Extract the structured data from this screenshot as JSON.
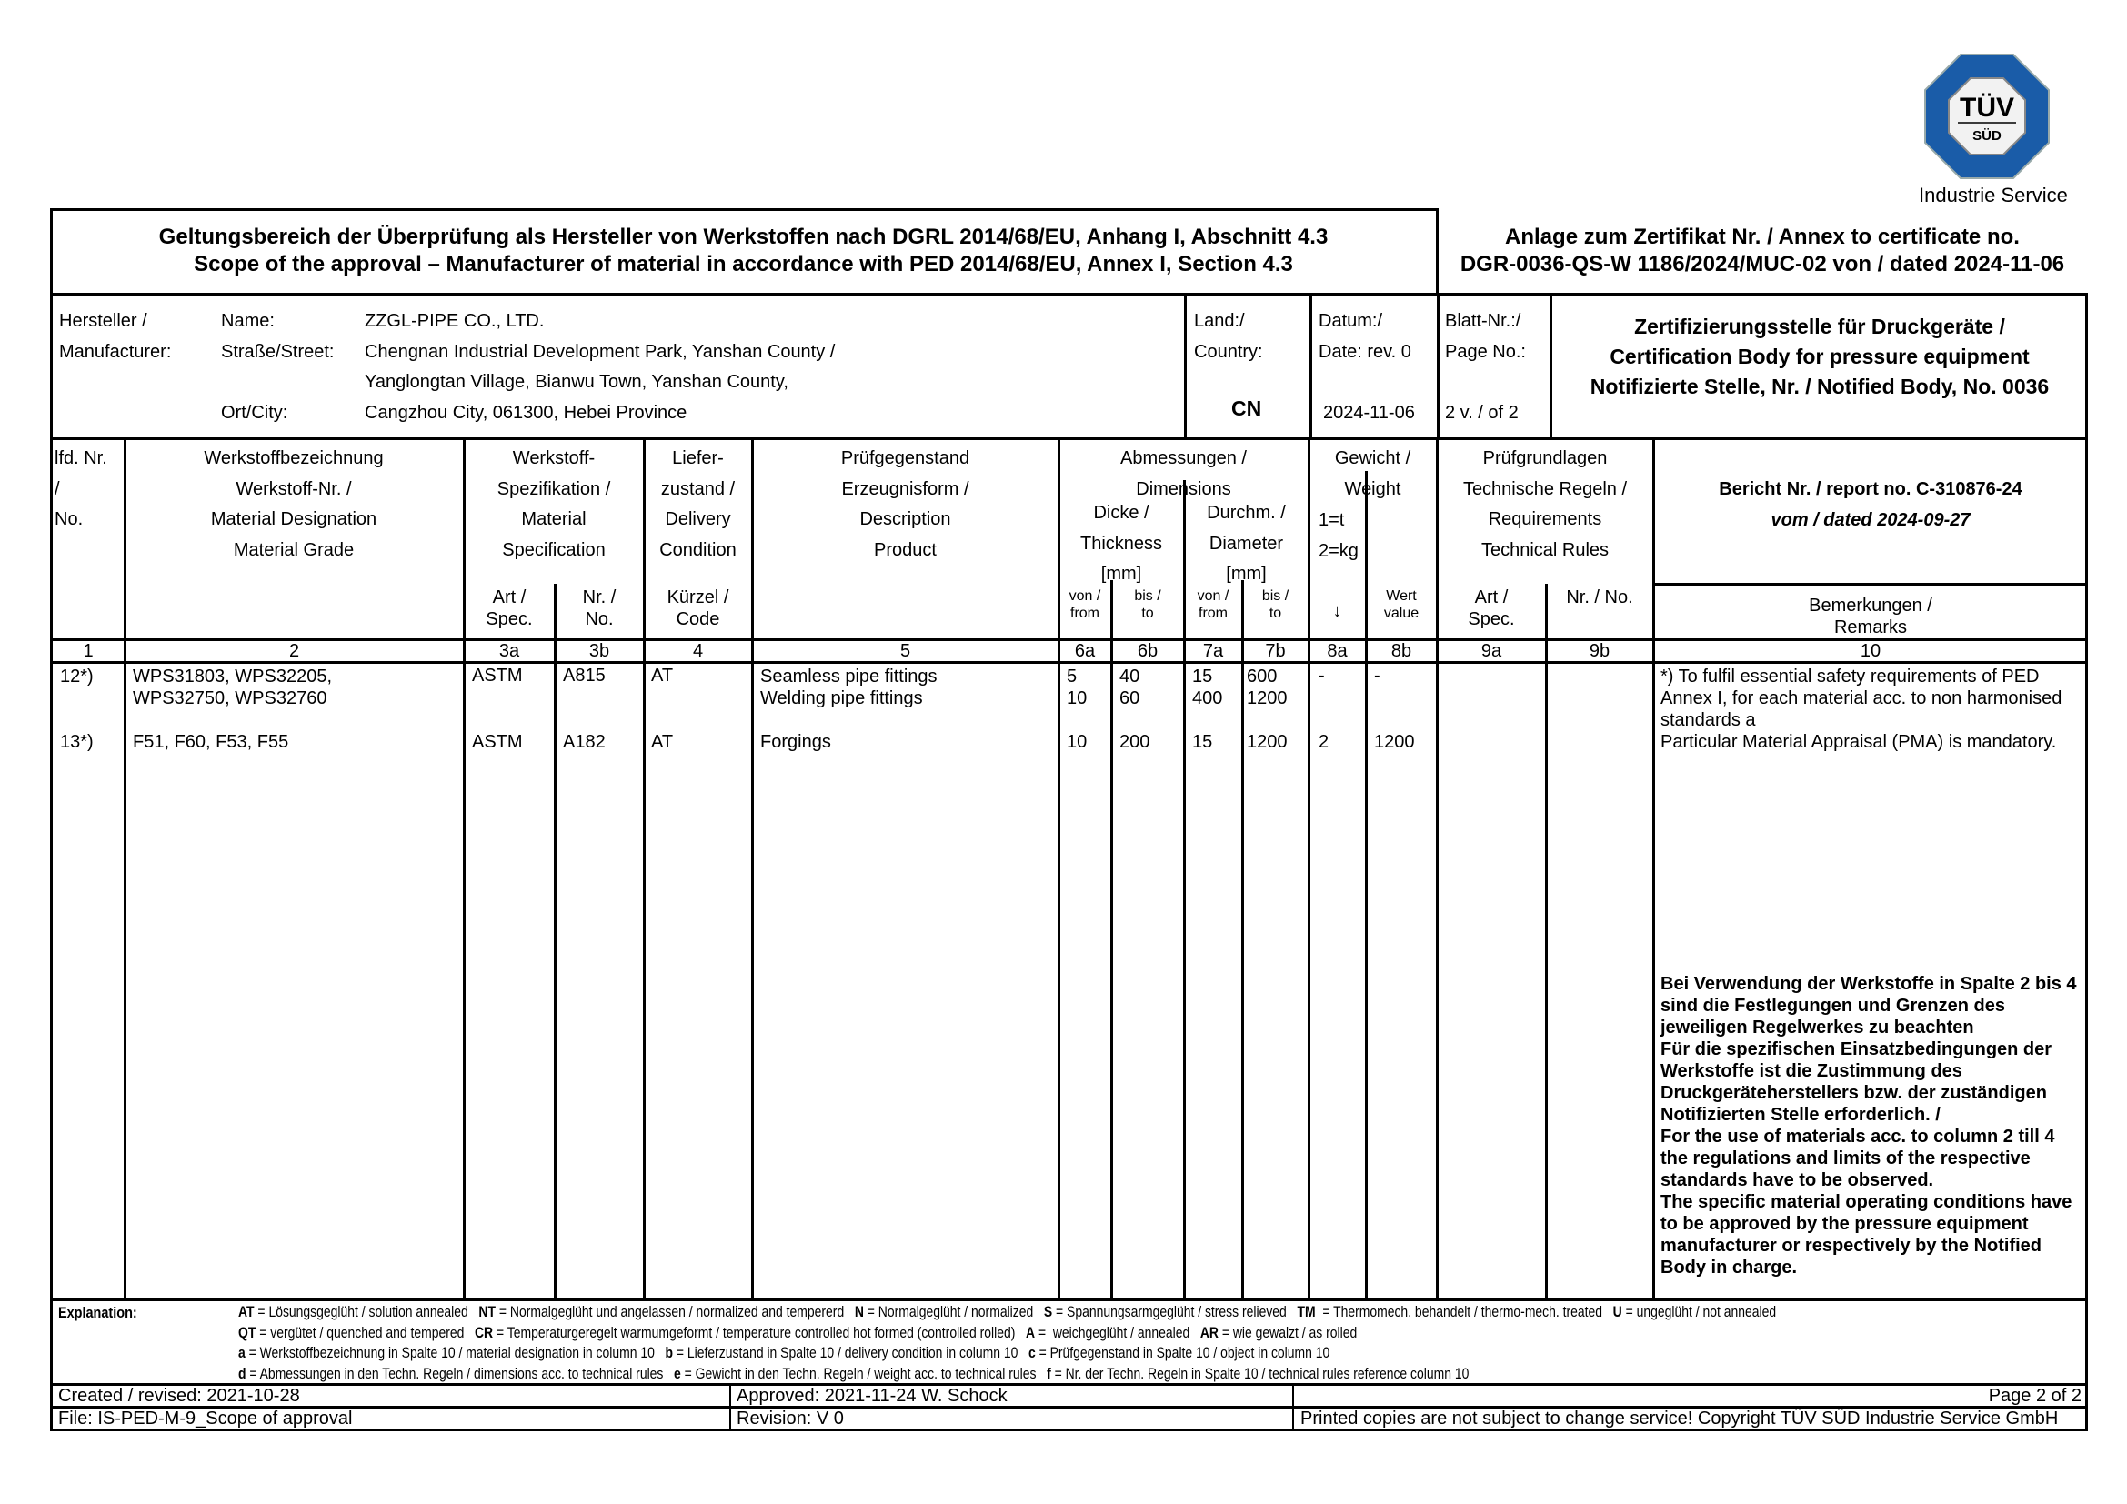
{
  "logo": {
    "brand": "TÜV",
    "sub": "SÜD",
    "caption": "Industrie Service",
    "blue": "#1a5ca8"
  },
  "title": {
    "de": "Geltungsbereich der Überprüfung als Hersteller von Werkstoffen nach DGRL 2014/68/EU, Anhang I, Abschnitt 4.3",
    "en": "Scope of the approval – Manufacturer of material in accordance with PED 2014/68/EU, Annex I, Section 4.3",
    "annex_line1": "Anlage zum Zertifikat Nr. / Annex to certificate no.",
    "annex_line2": "DGR-0036-QS-W 1186/2024/MUC-02 von / dated 2024-11-06"
  },
  "info": {
    "manufacturer_l1": "Hersteller /",
    "manufacturer_l2": "Manufacturer:",
    "name_label": "Name:",
    "street_label": "Straße/Street:",
    "city_label": "Ort/City:",
    "name": "ZZGL-PIPE CO., LTD.",
    "street1": "Chengnan Industrial Development Park, Yanshan County /",
    "street2": "Yanglongtan Village, Bianwu Town, Yanshan County,",
    "city": "Cangzhou City, 061300, Hebei Province",
    "country_l1": "Land:/",
    "country_l2": "Country:",
    "country": "CN",
    "date_l1": "Datum:/",
    "date_l2": "Date: rev. 0",
    "date": "2024-11-06",
    "page_l1": "Blatt-Nr.:/",
    "page_l2": "Page No.:",
    "page": "2 v. / of 2",
    "cert_l1": "Zertifizierungsstelle für Druckgeräte /",
    "cert_l2": "Certification Body for pressure equipment",
    "cert_l3": "Notifizierte Stelle, Nr. / Notified Body, No. 0036"
  },
  "headers": {
    "c1": "lfd. Nr.\n/\nNo.",
    "c2": "Werkstoffbezeichnung\nWerkstoff-Nr. /\nMaterial Designation\nMaterial Grade",
    "c3": "Werkstoff-\nSpezifikation /\nMaterial\nSpecification",
    "c3a": "Art /\nSpec.",
    "c3b": "Nr. /\nNo.",
    "c4": "Liefer-\nzustand /\nDelivery\nCondition",
    "c4code": "Kürzel /\nCode",
    "c5": "Prüfgegenstand\nErzeugnisform /\nDescription\nProduct",
    "c6_7": "Abmessungen /\nDimensions",
    "c6": "Dicke /\nThickness\n[mm]",
    "c7": "Durchm. /\nDiameter\n[mm]",
    "from": "von /\nfrom",
    "to": "bis /\nto",
    "c8": "Gewicht /\nWeight",
    "c8a_units": "1=t\n2=kg",
    "c8a_arrow": "↓",
    "c8b": "Wert\nvalue",
    "c9": "Prüfgrundlagen\nTechnische Regeln /\nRequirements\nTechnical Rules",
    "c9a": "Art /\nSpec.",
    "c9b": "Nr. / No.",
    "report": "Bericht Nr. / report no. C-310876-24",
    "report_date": "vom / dated 2024-09-27",
    "c10": "Bemerkungen /\nRemarks"
  },
  "col_numbers": [
    "1",
    "2",
    "3a",
    "3b",
    "4",
    "5",
    "6a",
    "6b",
    "7a",
    "7b",
    "8a",
    "8b",
    "9a",
    "9b",
    "10"
  ],
  "rows": [
    {
      "no": "12*)",
      "material": "WPS31803, WPS32205,\nWPS32750, WPS32760",
      "spec": "ASTM",
      "spec_no": "A815",
      "delivery": "AT",
      "product": "Seamless pipe fittings\nWelding pipe fittings",
      "t_from": "5\n10",
      "t_to": "40\n60",
      "d_from": "15\n400",
      "d_to": "600\n1200",
      "w_unit": "-",
      "w_value": "-"
    },
    {
      "no": "13*)",
      "material": "F51, F60, F53, F55",
      "spec": "ASTM",
      "spec_no": "A182",
      "delivery": "AT",
      "product": "Forgings",
      "t_from": "10",
      "t_to": "200",
      "d_from": "15",
      "d_to": "1200",
      "w_unit": "2",
      "w_value": "1200"
    }
  ],
  "remarks": {
    "note": "*) To fulfil essential safety requirements of PED Annex I, for each material acc. to non harmonised standards a\nParticular Material Appraisal (PMA) is mandatory.",
    "bold": "Bei Verwendung der Werkstoffe in Spalte 2 bis 4 sind die Festlegungen und Grenzen des jeweiligen Regelwerkes zu beachten\nFür die spezifischen Einsatzbedingungen der Werkstoffe ist die Zustimmung des Druckgeräteherstellers bzw. der zuständigen Notifizierten Stelle erforderlich. /\nFor the use of materials acc. to column 2 till 4 the regulations and limits of the respective standards have to be observed.\nThe specific material operating conditions have to be approved by the pressure equipment manufacturer or respectively by the Notified Body in charge."
  },
  "explanation": {
    "label": "Explanation:",
    "lines": [
      [
        [
          "AT",
          " = Lösungsgeglüht / solution annealed   "
        ],
        [
          "NT",
          " = Normalgeglüht und angelassen / normalized and tempererd   "
        ],
        [
          "N",
          " = Normalgeglüht / normalized   "
        ],
        [
          "S",
          " = Spannungsarmgeglüht / stress relieved   "
        ],
        [
          "TM",
          "  = Thermomech. behandelt / thermo-mech. treated   "
        ],
        [
          "U",
          " = ungeglüht / not annealed"
        ]
      ],
      [
        [
          "QT",
          " = vergütet / quenched and tempered   "
        ],
        [
          "CR",
          " = Temperaturgeregelt warmumgeformt / temperature controlled hot formed (controlled rolled)   "
        ],
        [
          "A",
          " =  weichgeglüht / annealed   "
        ],
        [
          "AR",
          " = wie gewalzt / as rolled"
        ]
      ],
      [
        [
          "a",
          " = Werkstoffbezeichnung in Spalte 10 / material designation in column 10   "
        ],
        [
          "b",
          " = Lieferzustand in Spalte 10 / delivery condition in column 10   "
        ],
        [
          "c",
          " = Prüfgegenstand in Spalte 10 / object in column 10"
        ]
      ],
      [
        [
          "d",
          " = Abmessungen in den Techn. Regeln / dimensions acc. to technical rules   "
        ],
        [
          "e",
          " = Gewicht in den Techn. Regeln / weight acc. to technical rules   "
        ],
        [
          "f",
          " = Nr. der Techn. Regeln in Spalte 10 / technical rules reference column 10"
        ]
      ]
    ]
  },
  "footer": {
    "created": "Created / revised: 2021-10-28",
    "approved": "Approved: 2021-11-24 W. Schock",
    "page": "Page 2 of 2",
    "file": "File: IS-PED-M-9_Scope of approval",
    "revision": "Revision:   V 0",
    "copyright": "Printed copies are not subject to change service! Copyright TÜV SÜD Industrie Service GmbH"
  }
}
